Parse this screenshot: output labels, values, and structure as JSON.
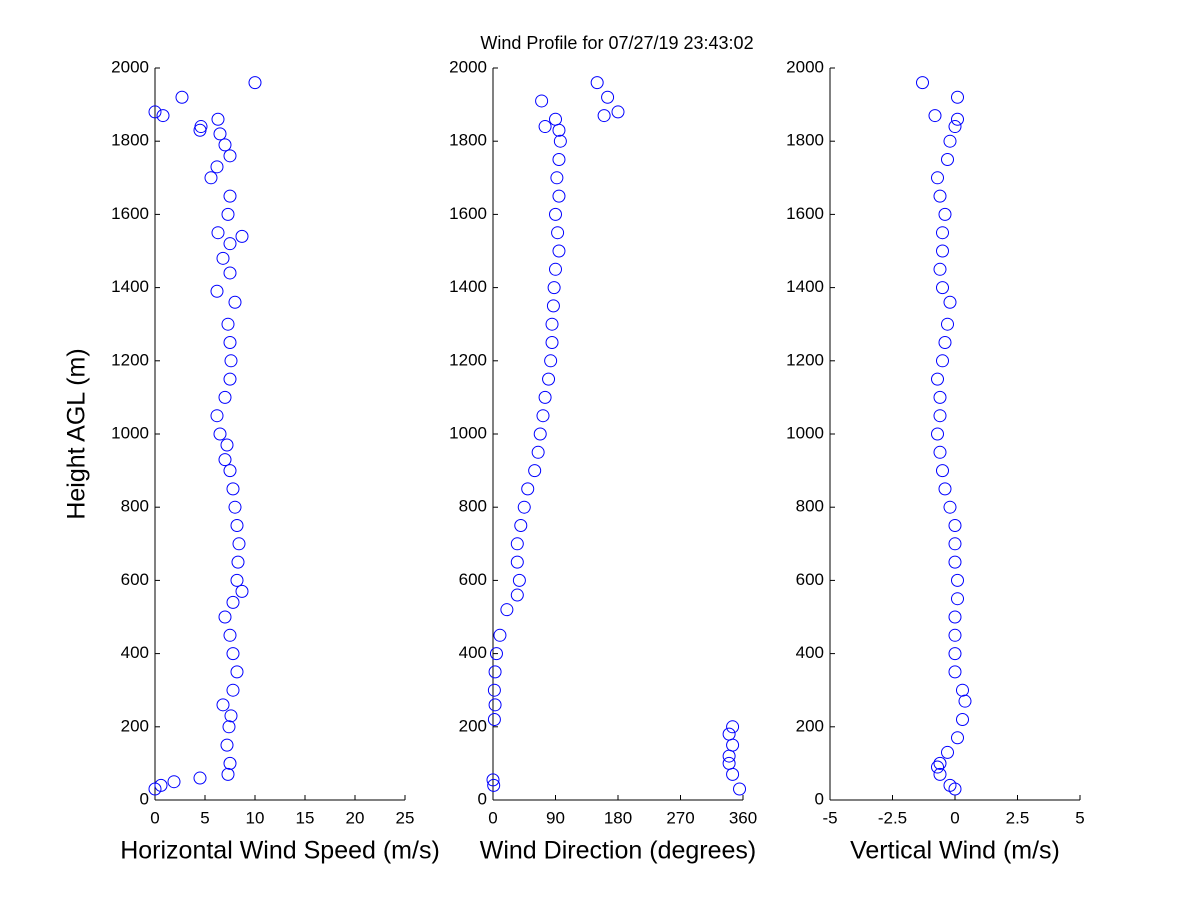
{
  "title": "Wind Profile for  07/27/19 23:43:02",
  "chart_data": [
    {
      "type": "scatter",
      "color": "#0000ff",
      "xlabel": "Horizontal Wind Speed (m/s)",
      "ylabel": "Height AGL (m)",
      "xlim": [
        0,
        25
      ],
      "xticks": [
        0,
        5,
        10,
        15,
        20,
        25
      ],
      "ylim": [
        0,
        2000
      ],
      "yticks": [
        0,
        200,
        400,
        600,
        800,
        1000,
        1200,
        1400,
        1600,
        1800,
        2000
      ],
      "x": [
        0,
        0.6,
        1.9,
        4.5,
        7.3,
        7.5,
        7.2,
        7.4,
        7.6,
        6.8,
        7.8,
        8.2,
        7.8,
        7.5,
        7.0,
        7.8,
        8.7,
        8.2,
        8.3,
        8.4,
        8.2,
        8.0,
        7.8,
        7.5,
        7.0,
        7.2,
        6.5,
        6.2,
        7.0,
        7.5,
        7.6,
        7.5,
        7.3,
        8.0,
        6.2,
        7.5,
        6.8,
        7.5,
        8.7,
        6.3,
        7.3,
        7.5,
        5.6,
        6.2,
        7.5,
        7.0,
        6.5,
        4.5,
        4.6,
        6.3,
        0,
        0.8,
        2.7,
        10
      ],
      "y": [
        30,
        40,
        50,
        60,
        70,
        100,
        150,
        200,
        230,
        260,
        300,
        350,
        400,
        450,
        500,
        540,
        570,
        600,
        650,
        700,
        750,
        800,
        850,
        900,
        930,
        970,
        1000,
        1050,
        1100,
        1150,
        1200,
        1250,
        1300,
        1360,
        1390,
        1440,
        1480,
        1520,
        1540,
        1550,
        1600,
        1650,
        1700,
        1730,
        1760,
        1790,
        1820,
        1830,
        1840,
        1860,
        1880,
        1870,
        1920,
        1960
      ]
    },
    {
      "type": "scatter",
      "color": "#0000ff",
      "xlabel": "Wind Direction (degrees)",
      "xlim": [
        0,
        360
      ],
      "xticks": [
        0,
        90,
        180,
        270,
        360
      ],
      "ylim": [
        0,
        2000
      ],
      "yticks": [
        0,
        200,
        400,
        600,
        800,
        1000,
        1200,
        1400,
        1600,
        1800,
        2000
      ],
      "x": [
        355,
        1,
        0,
        345,
        340,
        340,
        345,
        340,
        345,
        2,
        3,
        2,
        3,
        5,
        10,
        20,
        35,
        38,
        35,
        35,
        40,
        45,
        50,
        60,
        65,
        68,
        72,
        75,
        80,
        83,
        85,
        85,
        87,
        88,
        90,
        95,
        93,
        90,
        95,
        92,
        95,
        97,
        95,
        75,
        90,
        160,
        180,
        70,
        165,
        150
      ],
      "y": [
        30,
        40,
        55,
        70,
        100,
        120,
        150,
        180,
        200,
        220,
        260,
        300,
        350,
        400,
        450,
        520,
        560,
        600,
        650,
        700,
        750,
        800,
        850,
        900,
        950,
        1000,
        1050,
        1100,
        1150,
        1200,
        1250,
        1300,
        1350,
        1400,
        1450,
        1500,
        1550,
        1600,
        1650,
        1700,
        1750,
        1800,
        1830,
        1840,
        1860,
        1870,
        1880,
        1910,
        1920,
        1960
      ]
    },
    {
      "type": "scatter",
      "color": "#0000ff",
      "xlabel": "Vertical Wind (m/s)",
      "xlim": [
        -5,
        5
      ],
      "xticks": [
        -5,
        -2.5,
        0,
        2.5,
        5
      ],
      "ylim": [
        0,
        2000
      ],
      "yticks": [
        0,
        200,
        400,
        600,
        800,
        1000,
        1200,
        1400,
        1600,
        1800,
        2000
      ],
      "x": [
        0,
        -0.2,
        -0.6,
        -0.7,
        -0.6,
        -0.3,
        0.1,
        0.3,
        0.4,
        0.3,
        0,
        0,
        0,
        0,
        0.1,
        0.1,
        0,
        0,
        0,
        -0.2,
        -0.4,
        -0.5,
        -0.6,
        -0.7,
        -0.6,
        -0.6,
        -0.7,
        -0.5,
        -0.4,
        -0.3,
        -0.2,
        -0.5,
        -0.6,
        -0.5,
        -0.5,
        -0.4,
        -0.6,
        -0.7,
        -0.3,
        -0.2,
        0,
        0.1,
        -0.8,
        0.1,
        -1.3
      ],
      "y": [
        30,
        40,
        70,
        90,
        100,
        130,
        170,
        220,
        270,
        300,
        350,
        400,
        450,
        500,
        550,
        600,
        650,
        700,
        750,
        800,
        850,
        900,
        950,
        1000,
        1050,
        1100,
        1150,
        1200,
        1250,
        1300,
        1360,
        1400,
        1450,
        1500,
        1550,
        1600,
        1650,
        1700,
        1750,
        1800,
        1840,
        1860,
        1870,
        1920,
        1960
      ]
    }
  ]
}
